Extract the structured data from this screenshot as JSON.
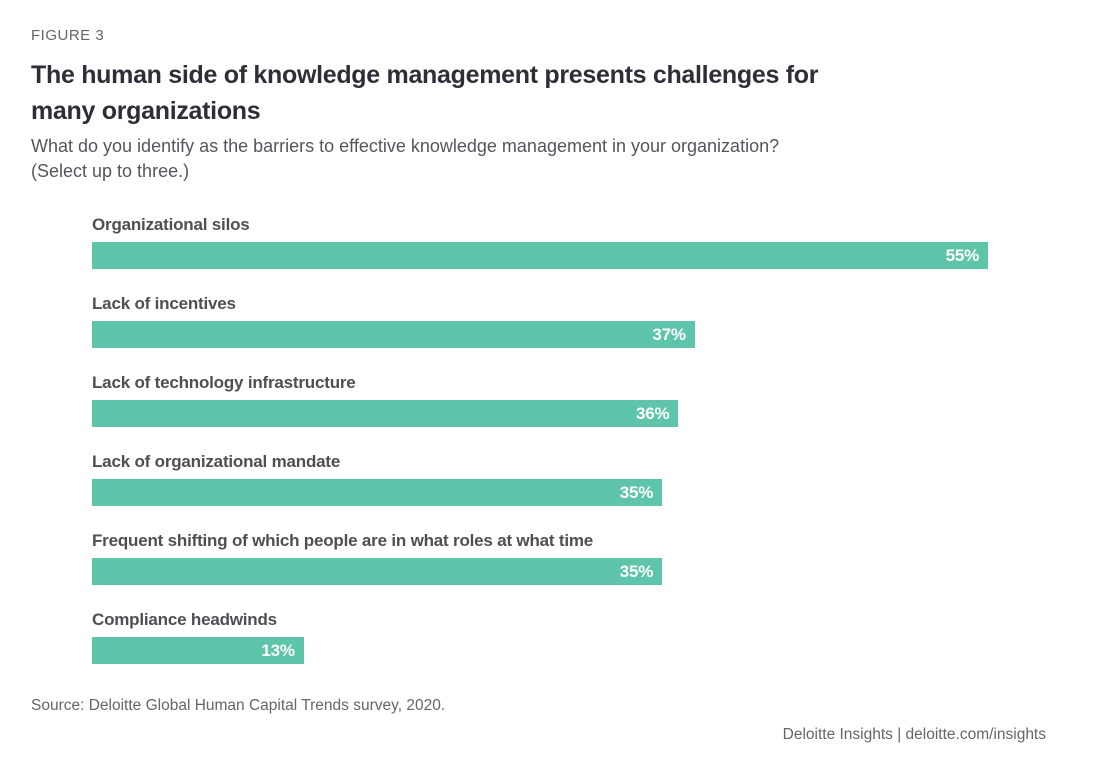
{
  "figure_label": "FIGURE 3",
  "title": {
    "line1": "The human side of knowledge management presents challenges for",
    "line2": "many organizations"
  },
  "subtitle": {
    "line1": "What do you identify as the barriers to effective knowledge management in your organization?",
    "line2": "(Select up to three.)"
  },
  "source": "Source: Deloitte Global Human Capital Trends survey, 2020.",
  "footer": "Deloitte Insights | deloitte.com/insights",
  "colors": {
    "bar": "#5ec5ab",
    "bar_value_text": "#ffffff",
    "title_text": "#2e2e38",
    "label_text": "#4d4f53",
    "subtitle_text": "#53565b",
    "muted_text": "#63666a"
  },
  "chart_data": {
    "type": "bar",
    "orientation": "horizontal",
    "title": "The human side of knowledge management presents challenges for many organizations",
    "question": "What do you identify as the barriers to effective knowledge management in your organization? (Select up to three.)",
    "categories": [
      "Organizational silos",
      "Lack of incentives",
      "Lack of technology infrastructure",
      "Lack of organizational mandate",
      "Frequent shifting of which people are in what roles at what time",
      "Compliance headwinds"
    ],
    "values": [
      55,
      37,
      36,
      35,
      35,
      13
    ],
    "value_labels": [
      "55%",
      "37%",
      "36%",
      "35%",
      "35%",
      "13%"
    ],
    "unit": "%",
    "axis_max": 55,
    "grid": false,
    "legend": false,
    "value_label_position": "inside-end"
  }
}
